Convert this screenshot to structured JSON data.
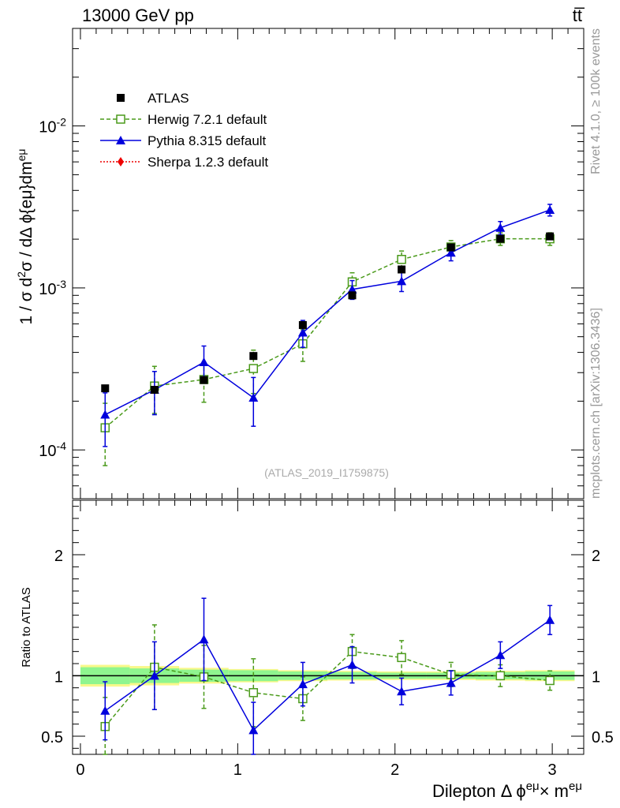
{
  "header": {
    "left": "13000 GeV pp",
    "right": "tt̅"
  },
  "side_text": {
    "rivet": "Rivet 4.1.0, ≥ 100k events",
    "mcplots": "mcplots.cern.ch [arXiv:1306.3436]"
  },
  "analysis_label": "(ATLAS_2019_I1759875)",
  "colors": {
    "atlas": "#000000",
    "herwig": "#4a9a1a",
    "pythia": "#0000dd",
    "sherpa": "#ee0000",
    "band_green": "#8ff58f",
    "band_yellow": "#f8f88a"
  },
  "chart_data": [
    {
      "type": "scatter",
      "panel": "main",
      "ylabel": "1 / σ  d²σ / dΔ ϕ{eμ}dm^{eμ}",
      "yscale": "log",
      "ylim": [
        5e-05,
        0.04
      ],
      "xlim": [
        -0.05,
        3.2
      ],
      "yticks": [
        {
          "value": 0.0001,
          "label": "10^-4"
        },
        {
          "value": 0.001,
          "label": "10^-3"
        },
        {
          "value": 0.01,
          "label": "10^-2"
        }
      ],
      "x": [
        0.157,
        0.471,
        0.785,
        1.1,
        1.414,
        1.728,
        2.042,
        2.356,
        2.67,
        2.985
      ],
      "series": [
        {
          "name": "ATLAS",
          "legend": "ATLAS",
          "values": [
            0.00024,
            0.000235,
            0.00027,
            0.00038,
            0.00059,
            0.0009,
            0.0013,
            0.00178,
            0.00201,
            0.00208
          ]
        },
        {
          "name": "Herwig",
          "legend": "Herwig 7.2.1 default",
          "values": [
            0.000137,
            0.000248,
            0.000272,
            0.000318,
            0.000452,
            0.00109,
            0.0015,
            0.00179,
            0.00201,
            0.00201
          ],
          "err_lo": [
            5.7e-05,
            8e-05,
            7.5e-05,
            9.5e-05,
            0.0001,
            0.00015,
            0.00019,
            0.00017,
            0.00018,
            0.00018
          ],
          "err_hi": [
            5.7e-05,
            8e-05,
            7.5e-05,
            9.5e-05,
            0.0001,
            0.00015,
            0.00019,
            0.00017,
            0.00018,
            0.00018
          ]
        },
        {
          "name": "Pythia",
          "legend": "Pythia 8.315 default",
          "values": [
            0.000165,
            0.000235,
            0.000348,
            0.00021,
            0.00053,
            0.00098,
            0.0011,
            0.00165,
            0.00235,
            0.00303
          ],
          "err_lo": [
            6e-05,
            7e-05,
            9e-05,
            7e-05,
            0.0001,
            0.00013,
            0.00015,
            0.00018,
            0.00022,
            0.00025
          ],
          "err_hi": [
            6e-05,
            7e-05,
            9e-05,
            7e-05,
            0.0001,
            0.00013,
            0.00015,
            0.00018,
            0.00022,
            0.00025
          ]
        },
        {
          "name": "Sherpa",
          "legend": "Sherpa 1.2.3 default",
          "values": []
        }
      ]
    },
    {
      "type": "scatter",
      "panel": "ratio",
      "ylabel": "Ratio to ATLAS",
      "ylim": [
        0.35,
        2.45
      ],
      "xlim": [
        -0.05,
        3.2
      ],
      "yticks": [
        {
          "value": 0.5,
          "label": "0.5"
        },
        {
          "value": 1,
          "label": "1"
        },
        {
          "value": 2,
          "label": "2"
        }
      ],
      "xticks": [
        {
          "value": 0,
          "label": "0"
        },
        {
          "value": 1,
          "label": "1"
        },
        {
          "value": 2,
          "label": "2"
        },
        {
          "value": 3,
          "label": "3"
        }
      ],
      "xlabel": "Dilepton Δ ϕ^{eμ} × m^{eμ}",
      "x": [
        0.157,
        0.471,
        0.785,
        1.1,
        1.414,
        1.728,
        2.042,
        2.356,
        2.67,
        2.985
      ],
      "bin_edges": [
        0.0,
        0.314,
        0.628,
        0.942,
        1.257,
        1.571,
        1.885,
        2.199,
        2.513,
        2.827,
        3.142
      ],
      "band_inner": [
        0.07,
        0.06,
        0.05,
        0.045,
        0.035,
        0.03,
        0.025,
        0.025,
        0.03,
        0.035
      ],
      "band_outer": [
        0.09,
        0.08,
        0.065,
        0.055,
        0.045,
        0.04,
        0.035,
        0.035,
        0.04,
        0.045
      ],
      "series": [
        {
          "name": "Herwig",
          "values": [
            0.58,
            1.07,
            0.99,
            0.86,
            0.81,
            1.2,
            1.15,
            1.01,
            1.0,
            0.96
          ],
          "err_lo": [
            0.24,
            0.35,
            0.26,
            0.28,
            0.18,
            0.14,
            0.14,
            0.1,
            0.09,
            0.08
          ],
          "err_hi": [
            0.24,
            0.35,
            0.26,
            0.28,
            0.18,
            0.14,
            0.14,
            0.1,
            0.09,
            0.08
          ]
        },
        {
          "name": "Pythia",
          "values": [
            0.71,
            1.0,
            1.3,
            0.55,
            0.93,
            1.09,
            0.87,
            0.94,
            1.17,
            1.46
          ],
          "err_lo": [
            0.24,
            0.28,
            0.34,
            0.23,
            0.18,
            0.15,
            0.11,
            0.1,
            0.11,
            0.12
          ],
          "err_hi": [
            0.24,
            0.28,
            0.34,
            0.23,
            0.18,
            0.15,
            0.11,
            0.1,
            0.11,
            0.12
          ]
        }
      ]
    }
  ]
}
